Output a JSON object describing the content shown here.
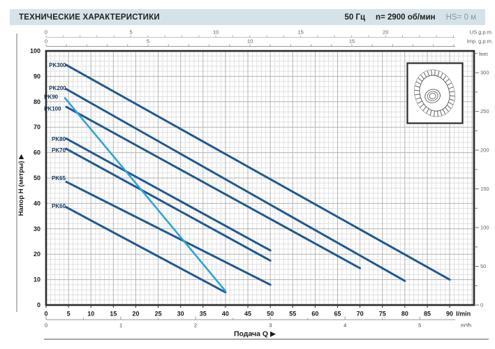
{
  "header": {
    "title": "ТЕХНИЧЕСКИЕ ХАРАКТЕРИСТИКИ",
    "frequency": "50 Гц",
    "speed": "n= 2900 об/мин",
    "suction": "HS= 0 м"
  },
  "chart_data": {
    "type": "line",
    "xlabel": "Подача Q",
    "xlabel_arrow": "▶",
    "x_axis_lmin": {
      "unit": "l/min",
      "min": 0,
      "max": 90,
      "tick_step": 5,
      "minor_step": 1
    },
    "x_axis_m3h": {
      "unit": "m³/h",
      "min": 0,
      "max": 5,
      "tick_step": 1,
      "minor_step": 0.5,
      "lmin_per_unit": 16.6667
    },
    "x_axis_us": {
      "unit": "US g.p.m.",
      "tick_labels": [
        0,
        5,
        10,
        15,
        20
      ],
      "minor_max": 24,
      "lmin_per_unit": 3.785
    },
    "x_axis_imp": {
      "unit": "Imp. g.p.m.",
      "tick_labels": [
        0,
        5,
        10,
        15
      ],
      "minor_max": 20,
      "lmin_per_unit": 4.546
    },
    "y_axis": {
      "label": "Напор H (метры)",
      "arrow": "▶",
      "unit": "м",
      "min": 0,
      "max": 100,
      "tick_step": 10,
      "minor_step": 2
    },
    "y_axis_feet": {
      "unit": "feet",
      "tick_labels": [
        0,
        50,
        100,
        150,
        200,
        250,
        300
      ],
      "minor_step": 25,
      "max_minor": 325,
      "m_per_foot": 0.3048
    },
    "grid": true,
    "series": [
      {
        "name": "PK300",
        "color": "dark_series",
        "points": [
          [
            4.5,
            94.5
          ],
          [
            90,
            10
          ]
        ],
        "label_pos": [
          0.65,
          94.3
        ]
      },
      {
        "name": "PK200",
        "color": "dark_series",
        "points": [
          [
            4.5,
            85
          ],
          [
            80,
            9.5
          ]
        ],
        "label_pos": [
          0.65,
          85.3
        ]
      },
      {
        "name": "PK100",
        "color": "dark_series",
        "points": [
          [
            4.5,
            78
          ],
          [
            70,
            14.5
          ]
        ],
        "label_pos": [
          -0.45,
          77.2
        ]
      },
      {
        "name": "PK80",
        "color": "dark_series",
        "points": [
          [
            4.5,
            65.5
          ],
          [
            50,
            21.5
          ]
        ],
        "label_pos": [
          1.25,
          65.3
        ]
      },
      {
        "name": "PK70",
        "color": "dark_series",
        "points": [
          [
            4.5,
            61.5
          ],
          [
            50,
            17.5
          ]
        ],
        "label_pos": [
          1.25,
          60.9
        ]
      },
      {
        "name": "PK65",
        "color": "dark_series",
        "points": [
          [
            4.5,
            48.5
          ],
          [
            50,
            8
          ]
        ],
        "label_pos": [
          1.25,
          49.9
        ]
      },
      {
        "name": "PK60",
        "color": "dark_series",
        "points": [
          [
            4.5,
            38.5
          ],
          [
            40,
            5
          ]
        ],
        "label_pos": [
          1.25,
          38.9
        ]
      },
      {
        "name": "PK90",
        "color": "light_series",
        "points": [
          [
            4.2,
            81.5
          ],
          [
            40,
            5.5
          ]
        ],
        "label_pos": [
          -0.45,
          81.9
        ]
      }
    ],
    "colors": {
      "dark_series": "#21598f",
      "light_series": "#2da3da",
      "grid_minor": "#dfdfdf",
      "grid_major": "#b3b3b3",
      "frame": "#2b2b2b",
      "axis_gray": "#999999",
      "text_dark": "#1a1a1a",
      "text_gray": "#5c5c5c",
      "label_navy": "#16365c"
    }
  }
}
